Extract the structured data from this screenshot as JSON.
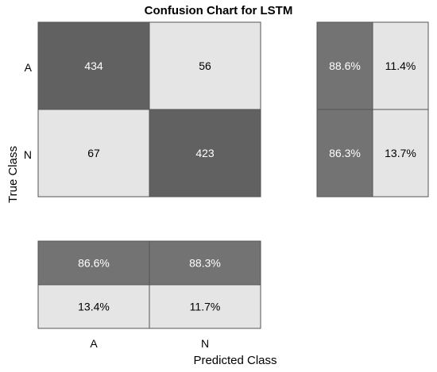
{
  "chart_data": {
    "type": "heatmap",
    "title": "Confusion Chart for LSTM",
    "xlabel": "Predicted Class",
    "ylabel": "True Class",
    "classes": [
      "A",
      "N"
    ],
    "matrix": [
      [
        434,
        56
      ],
      [
        67,
        423
      ]
    ],
    "matrix_labels": [
      [
        "434",
        "56"
      ],
      [
        "67",
        "423"
      ]
    ],
    "row_summary": [
      [
        88.6,
        11.4
      ],
      [
        86.3,
        13.7
      ]
    ],
    "row_summary_labels": [
      [
        "88.6%",
        "11.4%"
      ],
      [
        "86.3%",
        "13.7%"
      ]
    ],
    "column_summary": [
      [
        86.6,
        88.3
      ],
      [
        13.4,
        11.7
      ]
    ],
    "column_summary_labels": [
      [
        "86.6%",
        "88.3%"
      ],
      [
        "13.4%",
        "11.7%"
      ]
    ],
    "colors": {
      "dark": "#616161",
      "medium": "#737373",
      "light": "#e5e5e5",
      "border": "#555555",
      "text_on_dark": "#ffffff",
      "text_on_light": "#000000"
    }
  }
}
